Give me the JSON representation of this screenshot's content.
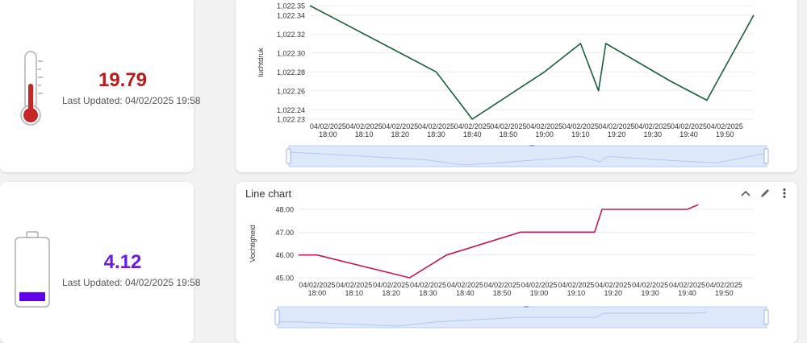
{
  "temperature_widget": {
    "value": "19.79",
    "last_updated": "Last Updated: 04/02/2025 19:58",
    "icon": "thermometer-icon",
    "value_color": "#b71c1c",
    "icon_color": "#c62828"
  },
  "battery_widget": {
    "value": "4.12",
    "last_updated": "Last Updated: 04/02/2025 19:58",
    "icon": "battery-icon",
    "level": 0.15,
    "value_color": "#6a1be0",
    "icon_color": "#6200ea"
  },
  "pressure_chart": {
    "title": "",
    "color": "#1b5e3a"
  },
  "humidity_chart": {
    "title": "Line chart",
    "color": "#c2185b",
    "actions": {
      "collapse_icon": "chevron-up-icon",
      "edit_icon": "pencil-icon",
      "menu_icon": "more-vert-icon"
    }
  },
  "chart_data": [
    {
      "type": "line",
      "ylabel": "luchtdruk",
      "xlabel": "",
      "ylim": [
        1022.23,
        1022.35
      ],
      "yticks": [
        "1,022.35",
        "1,022.34",
        "1,022.32",
        "1,022.30",
        "1,022.28",
        "1,022.26",
        "1,022.24",
        "1,022.23"
      ],
      "ytick_values": [
        1022.35,
        1022.34,
        1022.32,
        1022.3,
        1022.28,
        1022.26,
        1022.24,
        1022.23
      ],
      "xlim": [
        "04/02/2025 17:55",
        "04/02/2025 19:58"
      ],
      "xticks": [
        [
          "04/02/2025",
          "18:00"
        ],
        [
          "04/02/2025",
          "18:10"
        ],
        [
          "04/02/2025",
          "18:20"
        ],
        [
          "04/02/2025",
          "18:30"
        ],
        [
          "04/02/2025",
          "18:40"
        ],
        [
          "04/02/2025",
          "18:50"
        ],
        [
          "04/02/2025",
          "19:00"
        ],
        [
          "04/02/2025",
          "19:10"
        ],
        [
          "04/02/2025",
          "19:20"
        ],
        [
          "04/02/2025",
          "19:30"
        ],
        [
          "04/02/2025",
          "19:40"
        ],
        [
          "04/02/2025",
          "19:50"
        ]
      ],
      "xtick_times": [
        "18:00",
        "18:10",
        "18:20",
        "18:30",
        "18:40",
        "18:50",
        "19:00",
        "19:10",
        "19:20",
        "19:30",
        "19:40",
        "19:50"
      ],
      "series": [
        {
          "x": [
            "17:55",
            "18:00",
            "18:30",
            "18:40",
            "19:00",
            "19:10",
            "19:15",
            "19:17",
            "19:35",
            "19:45",
            "19:58"
          ],
          "values": [
            1022.35,
            1022.34,
            1022.28,
            1022.23,
            1022.28,
            1022.31,
            1022.26,
            1022.31,
            1022.27,
            1022.25,
            1022.34
          ]
        }
      ],
      "grid": true
    },
    {
      "type": "line",
      "title": "Line chart",
      "ylabel": "Vochtigheid",
      "xlabel": "",
      "ylim": [
        45,
        48
      ],
      "yticks": [
        "48.00",
        "47.00",
        "46.00",
        "45.00"
      ],
      "ytick_values": [
        48,
        47,
        46,
        45
      ],
      "xlim": [
        "04/02/2025 17:55",
        "04/02/2025 19:58"
      ],
      "xticks": [
        [
          "04/02/2025",
          "18:00"
        ],
        [
          "04/02/2025",
          "18:10"
        ],
        [
          "04/02/2025",
          "18:20"
        ],
        [
          "04/02/2025",
          "18:30"
        ],
        [
          "04/02/2025",
          "18:40"
        ],
        [
          "04/02/2025",
          "18:50"
        ],
        [
          "04/02/2025",
          "19:00"
        ],
        [
          "04/02/2025",
          "19:10"
        ],
        [
          "04/02/2025",
          "19:20"
        ],
        [
          "04/02/2025",
          "19:30"
        ],
        [
          "04/02/2025",
          "19:40"
        ],
        [
          "04/02/2025",
          "19:50"
        ]
      ],
      "xtick_times": [
        "18:00",
        "18:10",
        "18:20",
        "18:30",
        "18:40",
        "18:50",
        "19:00",
        "19:10",
        "19:20",
        "19:30",
        "19:40",
        "19:50"
      ],
      "series": [
        {
          "x": [
            "17:55",
            "18:00",
            "18:25",
            "18:35",
            "18:55",
            "19:05",
            "19:15",
            "19:17",
            "19:40",
            "19:43"
          ],
          "values": [
            46,
            46,
            45,
            46,
            47,
            47,
            47,
            48,
            48,
            48.2
          ]
        }
      ],
      "grid": true
    }
  ]
}
